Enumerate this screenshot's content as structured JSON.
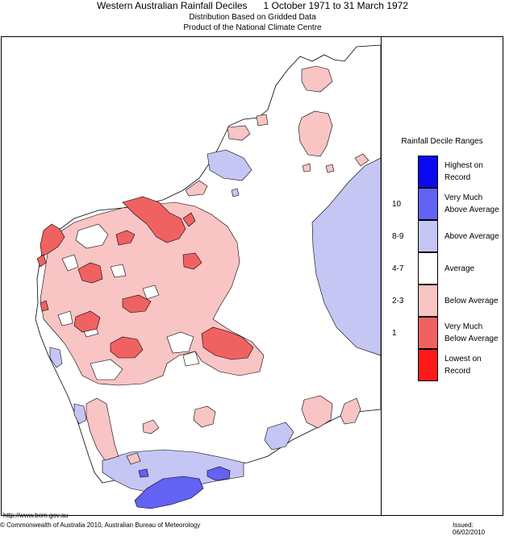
{
  "header": {
    "title": "Western Australian Rainfall Deciles      1 October 1971 to 31 March 1972",
    "line1": "Distribution Based on Gridded Data",
    "line2": "Product of the National Climate Centre"
  },
  "legend": {
    "title": "Rainfall Decile Ranges",
    "items": [
      {
        "label": "Highest on Record",
        "decile": "",
        "color": "#0a0af0"
      },
      {
        "label": "Very Much Above Average",
        "decile": "10",
        "color": "#6262f4"
      },
      {
        "label": "Above Average",
        "decile": "8-9",
        "color": "#c6c6f4"
      },
      {
        "label": "Average",
        "decile": "4-7",
        "color": "#ffffff"
      },
      {
        "label": "Below Average",
        "decile": "2-3",
        "color": "#f8c4c4"
      },
      {
        "label": "Very Much Below Average",
        "decile": "1",
        "color": "#f06262"
      },
      {
        "label": "Lowest on Record",
        "decile": "",
        "color": "#ff1a1a"
      }
    ]
  },
  "footer": {
    "url": "http://www.bom.gov.au",
    "copyright": "© Commonwealth of Australia 2010, Australian Bureau of Meteorology",
    "issued": "Issued: 06/02/2010"
  },
  "colors": {
    "highest": "#0a0af0",
    "very_much_above": "#6262f4",
    "above": "#c6c6f4",
    "below": "#f8c4c4",
    "very_much_below": "#f06262"
  }
}
